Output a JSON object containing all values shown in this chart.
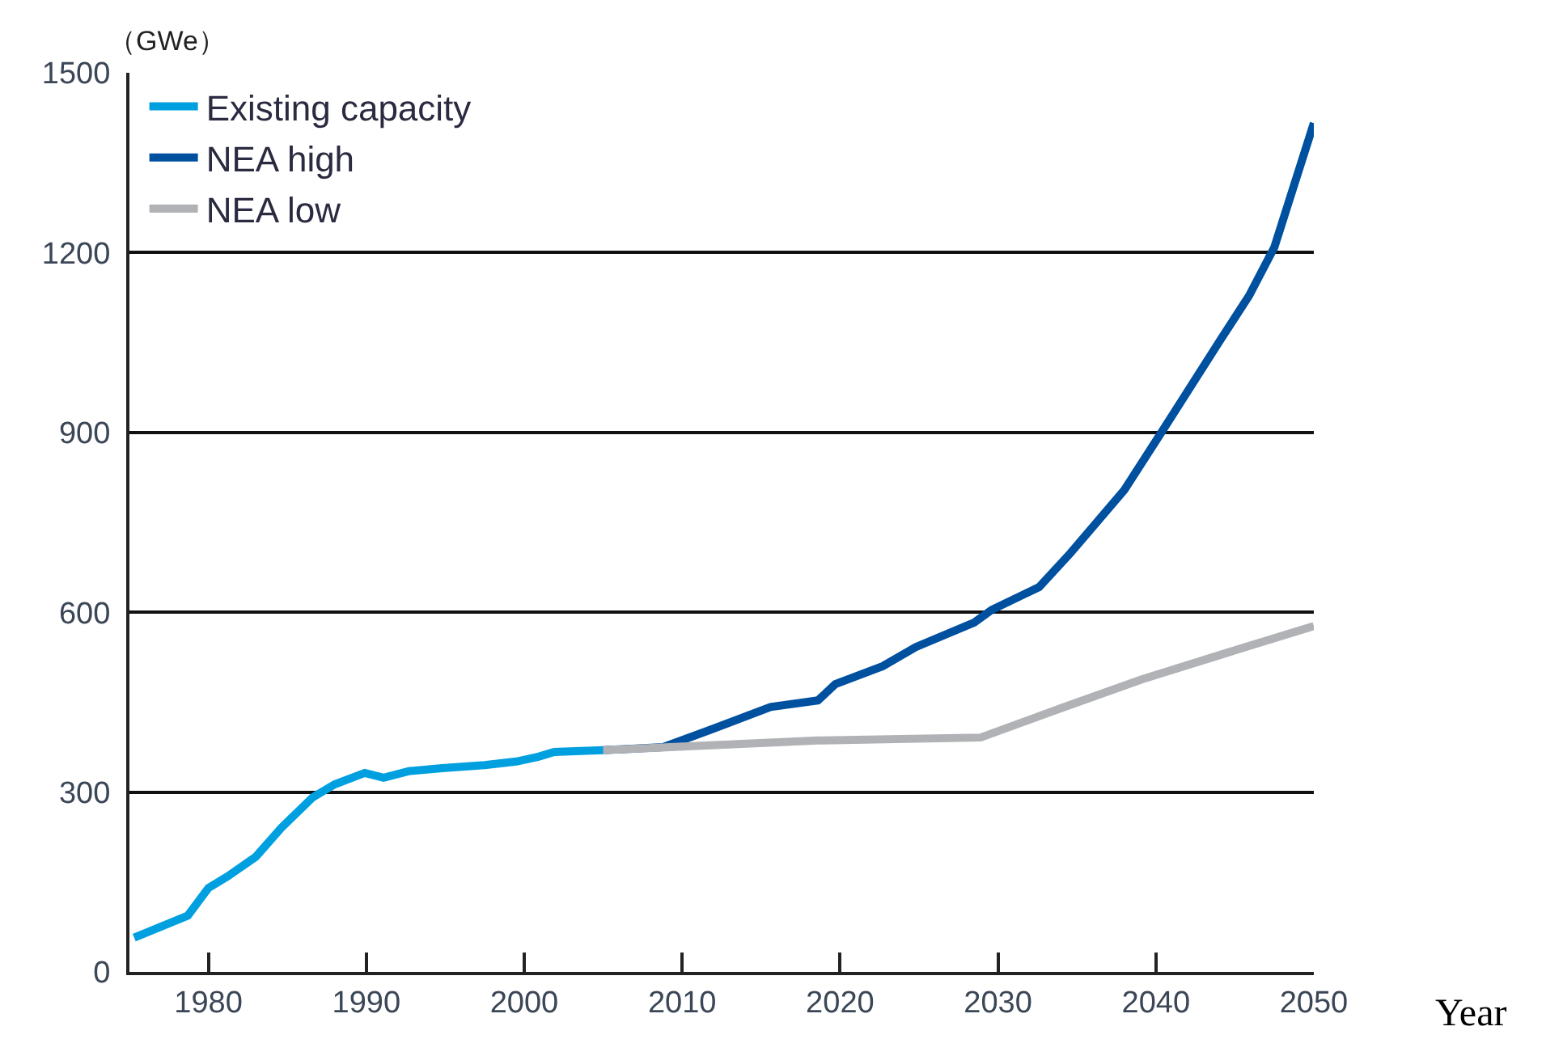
{
  "chart_data": {
    "type": "line",
    "xlabel": "Year",
    "ylabel": "（GWe）",
    "xlim": [
      1975,
      2050
    ],
    "xticks": [
      1980,
      1990,
      2000,
      2010,
      2020,
      2030,
      2040,
      2050
    ],
    "ylim": [
      0,
      1500
    ],
    "yticks": [
      0,
      300,
      600,
      900,
      1200,
      1500
    ],
    "grid": "y",
    "legend": "top left",
    "line_style": "solid",
    "marker": "none",
    "series": [
      {
        "name": "Existing capacity",
        "color": "#00a0e0",
        "x": [
          1975.3,
          1978.7,
          1980,
          1981.2,
          1983,
          1984.6,
          1986.6,
          1988,
          1989.9,
          1991.1,
          1992.7,
          1994.8,
          1997.5,
          1999.5,
          2000.9,
          2001.9,
          2005
        ],
        "values": [
          57,
          94,
          140,
          159,
          192,
          240,
          291,
          313,
          332,
          324,
          335,
          340,
          345,
          351,
          359,
          367,
          370
        ]
      },
      {
        "name": "NEA high",
        "color": "#0050a0",
        "x": [
          2005,
          2008.8,
          2011.9,
          2015.6,
          2018.6,
          2019.7,
          2022.7,
          2024.8,
          2028.5,
          2029.6,
          2032.6,
          2034.6,
          2038,
          2040.3,
          2044.1,
          2045.9,
          2047.5,
          2050
        ],
        "values": [
          370,
          375,
          405,
          442,
          453,
          480,
          510,
          542,
          583,
          604,
          642,
          699,
          804,
          898,
          1055,
          1128,
          1209,
          1416
        ]
      },
      {
        "name": "NEA low",
        "color": "#b0b2b6",
        "x": [
          2005,
          2018.6,
          2028.9,
          2034,
          2039.1,
          2044.7,
          2050
        ],
        "values": [
          370,
          386,
          391,
          440,
          488,
          534,
          577
        ]
      }
    ]
  }
}
